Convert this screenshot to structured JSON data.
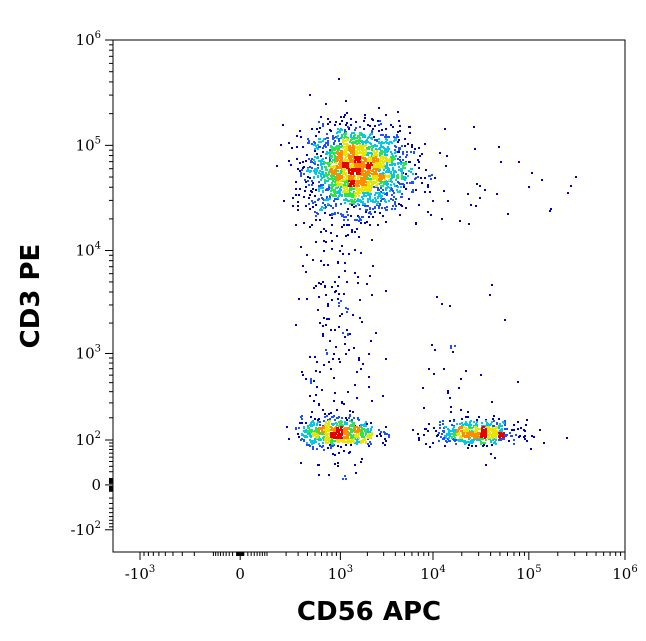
{
  "chart_data": {
    "type": "scatter",
    "subtype": "flow-cytometry-density-dot-plot",
    "title": "",
    "xlabel": "CD56 APC",
    "ylabel": "CD3 PE",
    "x_scale": "biexponential",
    "y_scale": "biexponential",
    "xlim": [
      -2000,
      1000000
    ],
    "ylim": [
      -200,
      1000000
    ],
    "x_ticks": [
      {
        "value": -1000,
        "base": "-10",
        "exp": "3"
      },
      {
        "value": 0,
        "base": "0",
        "exp": ""
      },
      {
        "value": 1000,
        "base": "10",
        "exp": "3"
      },
      {
        "value": 10000,
        "base": "10",
        "exp": "4"
      },
      {
        "value": 100000,
        "base": "10",
        "exp": "5"
      },
      {
        "value": 1000000,
        "base": "10",
        "exp": "6"
      }
    ],
    "y_ticks": [
      {
        "value": -100,
        "base": "-10",
        "exp": "2"
      },
      {
        "value": 0,
        "base": "0",
        "exp": ""
      },
      {
        "value": 100,
        "base": "10",
        "exp": "2"
      },
      {
        "value": 1000,
        "base": "10",
        "exp": "3"
      },
      {
        "value": 10000,
        "base": "10",
        "exp": "4"
      },
      {
        "value": 100000,
        "base": "10",
        "exp": "5"
      },
      {
        "value": 1000000,
        "base": "10",
        "exp": "6"
      }
    ],
    "grid": false,
    "legend": "none",
    "density_colors": [
      "#0000b4",
      "#1e50ff",
      "#00c8e6",
      "#28e650",
      "#e6e600",
      "#ff8c00",
      "#e60000"
    ],
    "populations": [
      {
        "x_center": 1500,
        "y_center": 60000,
        "x_spread_decades": 0.28,
        "y_spread_decades": 0.2,
        "events": 2200
      },
      {
        "x_center": 900,
        "y_center": 130,
        "x_spread_decades": 0.22,
        "y_spread_decades": 0.1,
        "events": 650
      },
      {
        "x_center": 28000,
        "y_center": 130,
        "x_spread_decades": 0.22,
        "y_spread_decades": 0.08,
        "events": 550
      },
      {
        "x_center": 850,
        "y_center": 1500,
        "x_spread_decades": 0.22,
        "y_spread_decades": 0.9,
        "events": 220
      },
      {
        "x_center": 20000,
        "y_center": 500,
        "x_spread_decades": 0.3,
        "y_spread_decades": 0.5,
        "events": 40
      },
      {
        "x_center": 30000,
        "y_center": 50000,
        "x_spread_decades": 0.7,
        "y_spread_decades": 0.25,
        "events": 40
      }
    ]
  }
}
